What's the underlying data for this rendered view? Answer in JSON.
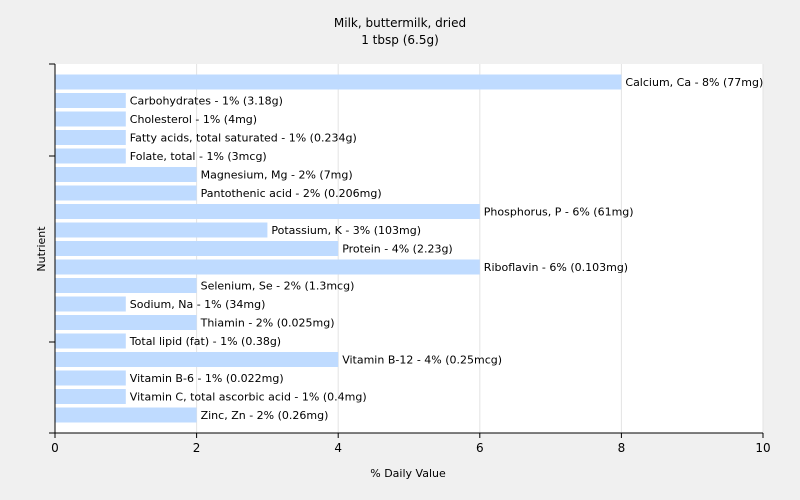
{
  "chart_data": {
    "type": "bar",
    "orientation": "horizontal",
    "title": "Milk, buttermilk, dried",
    "subtitle": "1 tbsp (6.5g)",
    "xlabel": "% Daily Value",
    "ylabel": "Nutrient",
    "xlim": [
      0,
      10
    ],
    "xticks": [
      0,
      2,
      4,
      6,
      8,
      10
    ],
    "grid": true,
    "bar_color": "#bfdbff",
    "bars": [
      {
        "name": "Calcium, Ca",
        "value": 8,
        "label": "Calcium, Ca - 8% (77mg)"
      },
      {
        "name": "Carbohydrates",
        "value": 1,
        "label": "Carbohydrates - 1% (3.18g)"
      },
      {
        "name": "Cholesterol",
        "value": 1,
        "label": "Cholesterol - 1% (4mg)"
      },
      {
        "name": "Fatty acids, total saturated",
        "value": 1,
        "label": "Fatty acids, total saturated - 1% (0.234g)"
      },
      {
        "name": "Folate, total",
        "value": 1,
        "label": "Folate, total - 1% (3mcg)"
      },
      {
        "name": "Magnesium, Mg",
        "value": 2,
        "label": "Magnesium, Mg - 2% (7mg)"
      },
      {
        "name": "Pantothenic acid",
        "value": 2,
        "label": "Pantothenic acid - 2% (0.206mg)"
      },
      {
        "name": "Phosphorus, P",
        "value": 6,
        "label": "Phosphorus, P - 6% (61mg)"
      },
      {
        "name": "Potassium, K",
        "value": 3,
        "label": "Potassium, K - 3% (103mg)"
      },
      {
        "name": "Protein",
        "value": 4,
        "label": "Protein - 4% (2.23g)"
      },
      {
        "name": "Riboflavin",
        "value": 6,
        "label": "Riboflavin - 6% (0.103mg)"
      },
      {
        "name": "Selenium, Se",
        "value": 2,
        "label": "Selenium, Se - 2% (1.3mcg)"
      },
      {
        "name": "Sodium, Na",
        "value": 1,
        "label": "Sodium, Na - 1% (34mg)"
      },
      {
        "name": "Thiamin",
        "value": 2,
        "label": "Thiamin - 2% (0.025mg)"
      },
      {
        "name": "Total lipid (fat)",
        "value": 1,
        "label": "Total lipid (fat) - 1% (0.38g)"
      },
      {
        "name": "Vitamin B-12",
        "value": 4,
        "label": "Vitamin B-12 - 4% (0.25mcg)"
      },
      {
        "name": "Vitamin B-6",
        "value": 1,
        "label": "Vitamin B-6 - 1% (0.022mg)"
      },
      {
        "name": "Vitamin C, total ascorbic acid",
        "value": 1,
        "label": "Vitamin C, total ascorbic acid - 1% (0.4mg)"
      },
      {
        "name": "Zinc, Zn",
        "value": 2,
        "label": "Zinc, Zn - 2% (0.26mg)"
      }
    ]
  }
}
